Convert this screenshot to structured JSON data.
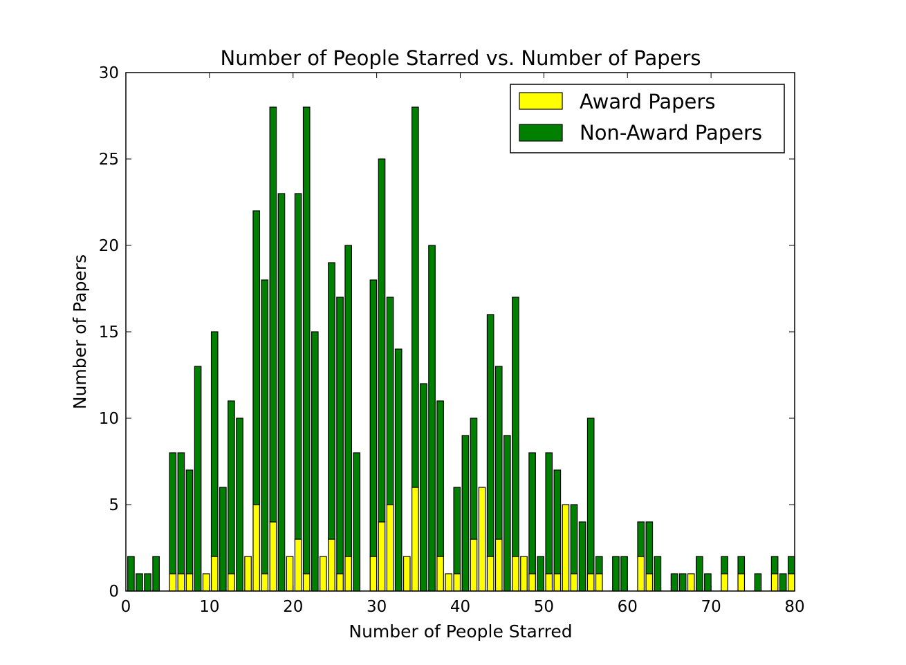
{
  "chart_data": {
    "type": "bar",
    "stacked": true,
    "title": "Number of People Starred vs. Number of Papers",
    "xlabel": "Number of People Starred",
    "ylabel": "Number of Papers",
    "xlim": [
      0,
      80
    ],
    "ylim": [
      0,
      30
    ],
    "xticks": [
      0,
      10,
      20,
      30,
      40,
      50,
      60,
      70,
      80
    ],
    "yticks": [
      0,
      5,
      10,
      15,
      20,
      25,
      30
    ],
    "grid": false,
    "legend_position": "top-right",
    "x": [
      1,
      2,
      3,
      4,
      5,
      6,
      7,
      8,
      9,
      10,
      11,
      12,
      13,
      14,
      15,
      16,
      17,
      18,
      19,
      20,
      21,
      22,
      23,
      24,
      25,
      26,
      27,
      28,
      29,
      30,
      31,
      32,
      33,
      34,
      35,
      36,
      37,
      38,
      39,
      40,
      41,
      42,
      43,
      44,
      45,
      46,
      47,
      48,
      49,
      50,
      51,
      52,
      53,
      54,
      55,
      56,
      57,
      58,
      59,
      60,
      61,
      62,
      63,
      64,
      65,
      66,
      67,
      68,
      69,
      70,
      71,
      72,
      73,
      74,
      75,
      76,
      77,
      78,
      79,
      80
    ],
    "series": [
      {
        "name": "Award Papers",
        "color": "#ffff00",
        "values": [
          0,
          0,
          0,
          0,
          0,
          1,
          1,
          1,
          0,
          1,
          2,
          0,
          1,
          0,
          2,
          5,
          1,
          4,
          0,
          2,
          3,
          1,
          0,
          2,
          3,
          1,
          2,
          0,
          0,
          2,
          4,
          5,
          0,
          2,
          6,
          0,
          0,
          2,
          1,
          1,
          0,
          3,
          6,
          2,
          3,
          0,
          2,
          2,
          1,
          0,
          1,
          1,
          5,
          1,
          0,
          1,
          1,
          0,
          0,
          0,
          0,
          2,
          1,
          0,
          0,
          0,
          0,
          1,
          0,
          0,
          0,
          1,
          0,
          1,
          0,
          0,
          0,
          1,
          0,
          1
        ]
      },
      {
        "name": "Non-Award Papers",
        "color": "#008000",
        "values": [
          2,
          1,
          1,
          2,
          0,
          7,
          7,
          6,
          13,
          0,
          13,
          6,
          10,
          10,
          0,
          17,
          17,
          24,
          23,
          0,
          20,
          27,
          15,
          0,
          16,
          16,
          18,
          8,
          0,
          16,
          21,
          12,
          14,
          0,
          22,
          12,
          20,
          9,
          0,
          5,
          9,
          7,
          0,
          14,
          10,
          9,
          15,
          0,
          7,
          2,
          7,
          6,
          0,
          4,
          4,
          9,
          1,
          0,
          2,
          2,
          0,
          2,
          3,
          2,
          0,
          1,
          1,
          0,
          2,
          1,
          0,
          1,
          0,
          1,
          0,
          1,
          0,
          1,
          1,
          1
        ]
      }
    ]
  }
}
